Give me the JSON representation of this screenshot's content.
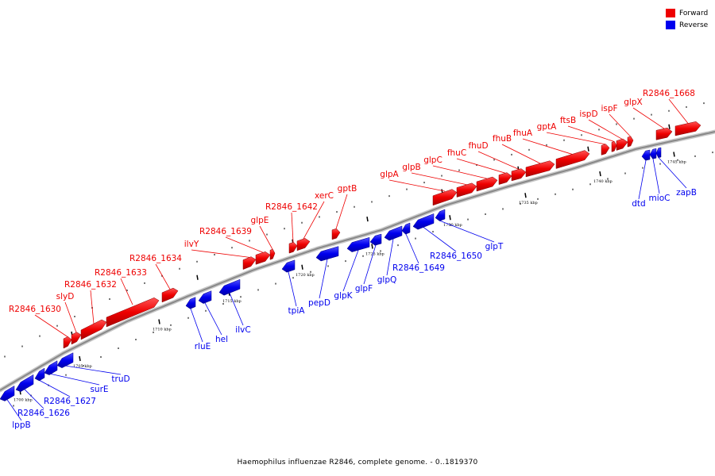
{
  "caption": "Haemophilus influenzae R2846, complete genome. - 0..1819370",
  "legend": {
    "forward_label": "Forward",
    "reverse_label": "Reverse"
  },
  "colors": {
    "forward": "#ee0000",
    "reverse": "#0000ee",
    "backbone": "#888888"
  },
  "tick_labels": [
    "1700 kbp",
    "1705 kbp",
    "1710 kbp",
    "1715 kbp",
    "1720 kbp",
    "1725 kbp",
    "1730 kbp",
    "1735 kbp",
    "1740 kbp",
    "1745 kbp"
  ],
  "forward_genes": [
    "R2846_1630",
    "slyD",
    "R2846_1632",
    "R2846_1633",
    "R2846_1634",
    "ilvY",
    "R2846_1639",
    "glpE",
    "R2846_1642",
    "xerC",
    "gptB",
    "glpA",
    "glpB",
    "glpC",
    "fhuC",
    "fhuD",
    "fhuB",
    "fhuA",
    "gptA",
    "ftsB",
    "ispD",
    "ispF",
    "glpX",
    "R2846_1668"
  ],
  "reverse_genes": [
    "lppB",
    "R2846_1626",
    "R2846_1627",
    "surE",
    "truD",
    "rluE",
    "hel",
    "ilvC",
    "tpiA",
    "pepD",
    "glpK",
    "glpF",
    "glpQ",
    "R2846_1649",
    "R2846_1650",
    "glpT",
    "dtd",
    "mioC",
    "zapB"
  ]
}
